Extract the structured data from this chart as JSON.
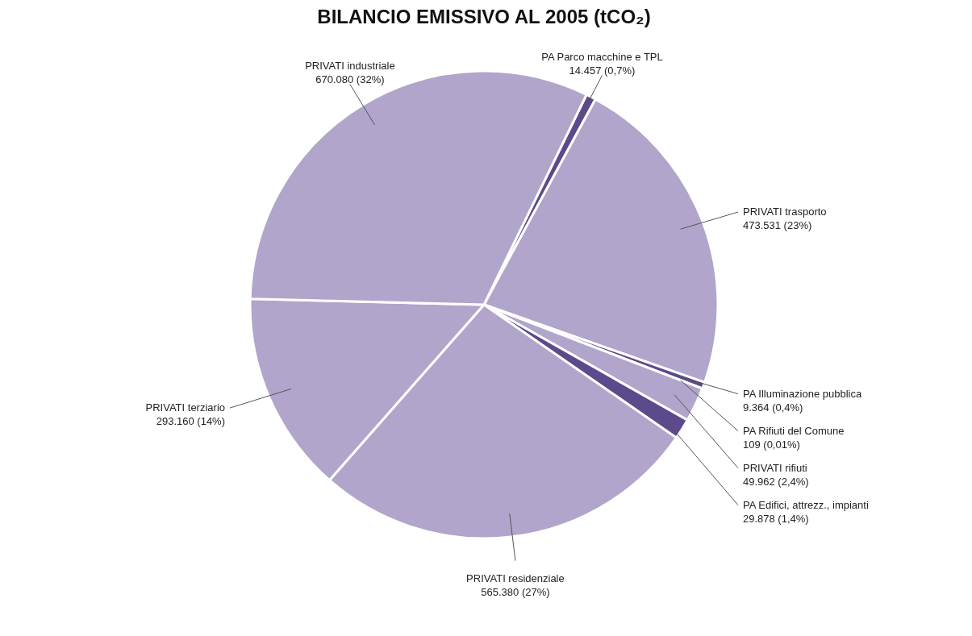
{
  "chart_data": {
    "type": "pie",
    "title": "BILANCIO EMISSIVO AL 2005 (tCO₂)",
    "categories": [
      "PA Parco macchine e TPL",
      "PRIVATI trasporto",
      "PA Illuminazione pubblica",
      "PA Rifiuti del Comune",
      "PRIVATI rifiuti",
      "PA Edifici, attrezz., impianti",
      "PRIVATI residenziale",
      "PRIVATI terziario",
      "PRIVATI industriale"
    ],
    "values": [
      14457,
      473531,
      9364,
      109,
      49962,
      29878,
      565380,
      293160,
      670080
    ],
    "value_labels": [
      "14.457 (0,7%)",
      "473.531 (23%)",
      "9.364 (0,4%)",
      "109 (0,01%)",
      "49.962 (2,4%)",
      "29.878 (1,4%)",
      "565.380 (27%)",
      "293.160 (14%)",
      "670.080 (32%)"
    ],
    "colors": [
      "#5b4a8c",
      "#b1a5cb",
      "#5b4a8c",
      "#5b4a8c",
      "#b1a5cb",
      "#5b4a8c",
      "#b1a5cb",
      "#b1a5cb",
      "#b1a5cb"
    ],
    "legend": false
  }
}
